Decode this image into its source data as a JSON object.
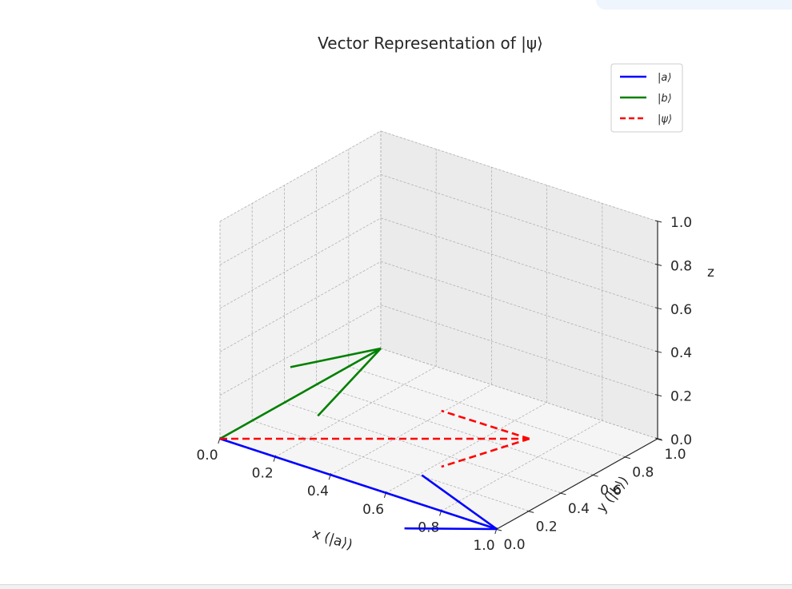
{
  "chart_data": {
    "type": "line",
    "projection": "3d",
    "title": "Vector Representation of |ψ⟩",
    "xlabel": "x (|a⟩)",
    "ylabel": "y (|b⟩)",
    "zlabel": "z",
    "xlim": [
      0,
      1
    ],
    "ylim": [
      0,
      1
    ],
    "zlim": [
      0,
      1
    ],
    "xticks": [
      "0.0",
      "0.2",
      "0.4",
      "0.6",
      "0.8",
      "1.0"
    ],
    "yticks": [
      "0.0",
      "0.2",
      "0.4",
      "0.6",
      "0.8",
      "1.0"
    ],
    "zticks": [
      "0.0",
      "0.2",
      "0.4",
      "0.6",
      "0.8",
      "1.0"
    ],
    "grid": true,
    "legend": "top-right",
    "series": [
      {
        "name": "|a⟩",
        "color": "#0000ff",
        "style": "solid",
        "start": [
          0,
          0,
          0
        ],
        "end": [
          1,
          0,
          0
        ]
      },
      {
        "name": "|b⟩",
        "color": "#008000",
        "style": "solid",
        "start": [
          0,
          0,
          0
        ],
        "end": [
          0,
          1,
          0
        ]
      },
      {
        "name": "|ψ⟩",
        "color": "#ff0000",
        "style": "dashed",
        "start": [
          0,
          0,
          0
        ],
        "end": [
          0.707,
          0.707,
          0
        ]
      }
    ]
  }
}
